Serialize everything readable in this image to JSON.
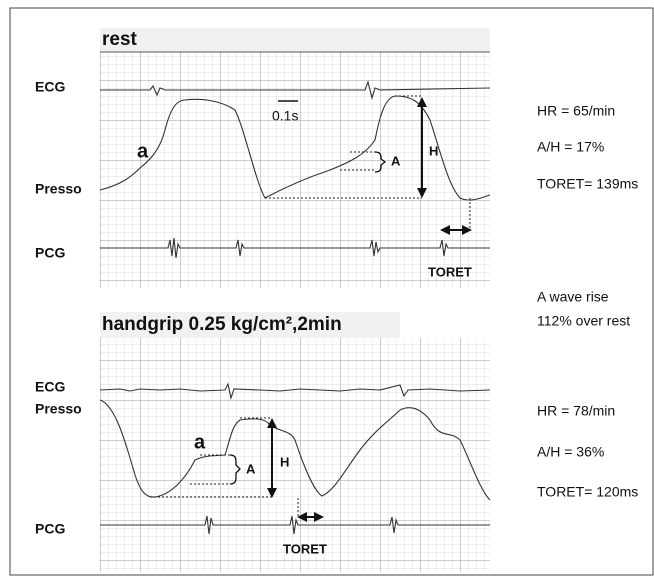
{
  "panels": [
    {
      "title": "rest",
      "labels": [
        "ECG",
        "Presso",
        "PCG"
      ],
      "wave": "a",
      "bracket": "A",
      "height": "H",
      "scale": "0.1s",
      "toret": "TORET",
      "stats": [
        "HR = 65/min",
        "A/H = 17%",
        "TORET= 139ms"
      ]
    },
    {
      "title": "handgrip 0.25 kg/cm²,2min",
      "labels": [
        "ECG",
        "Presso",
        "PCG"
      ],
      "wave": "a",
      "bracket": "A",
      "height": "H",
      "toret": "TORET",
      "stats": [
        "HR = 78/min",
        "A/H = 36%",
        "TORET= 120ms"
      ]
    }
  ],
  "comparison": [
    "A wave rise",
    "112% over rest"
  ]
}
